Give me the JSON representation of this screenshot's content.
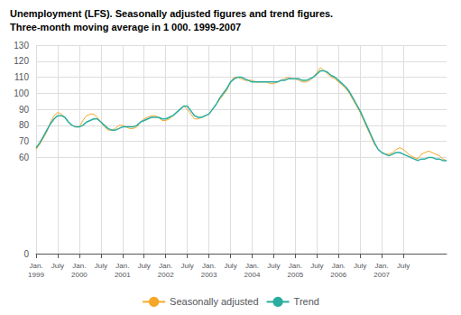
{
  "chart_data": {
    "type": "line",
    "title": "Unemployment (LFS). Seasonally adjusted figures and trend figures.",
    "subtitle": "Three-month moving average in 1 000. 1999-2007",
    "categories": [
      "Jan.\n1999",
      null,
      null,
      null,
      null,
      null,
      "July",
      null,
      null,
      null,
      null,
      null,
      "Jan.\n2000",
      null,
      null,
      null,
      null,
      null,
      "July",
      null,
      null,
      null,
      null,
      null,
      "Jan.\n2001",
      null,
      null,
      null,
      null,
      null,
      "July",
      null,
      null,
      null,
      null,
      null,
      "Jan.\n2002",
      null,
      null,
      null,
      null,
      null,
      "July",
      null,
      null,
      null,
      null,
      null,
      "Jan.\n2003",
      null,
      null,
      null,
      null,
      null,
      "July",
      null,
      null,
      null,
      null,
      null,
      "Jan.\n2004",
      null,
      null,
      null,
      null,
      null,
      "July",
      null,
      null,
      null,
      null,
      null,
      "Jan.\n2005",
      null,
      null,
      null,
      null,
      null,
      "July",
      null,
      null,
      null,
      null,
      null,
      "Jan.\n2006",
      null,
      null,
      null,
      null,
      null,
      "July",
      null,
      null,
      null,
      null,
      null,
      "Jan.\n2007",
      null,
      null,
      null,
      null,
      null,
      "July",
      null,
      null,
      null,
      null,
      null,
      null,
      null,
      null,
      null,
      null,
      null,
      null
    ],
    "series": [
      {
        "name": "Seasonally adjusted",
        "color": "#f5a828",
        "values": [
          65,
          68,
          72,
          76,
          82,
          86,
          88,
          87,
          85,
          82,
          80,
          79,
          79,
          83,
          86,
          87,
          87,
          85,
          82,
          79,
          77,
          77,
          78,
          80,
          80,
          79,
          78,
          78,
          79,
          82,
          84,
          85,
          86,
          86,
          85,
          83,
          83,
          84,
          86,
          88,
          90,
          92,
          90,
          87,
          84,
          84,
          85,
          86,
          87,
          90,
          93,
          96,
          99,
          102,
          107,
          110,
          110,
          109,
          108,
          108,
          108,
          107,
          107,
          107,
          107,
          106,
          106,
          107,
          108,
          109,
          110,
          109,
          109,
          108,
          107,
          107,
          108,
          110,
          113,
          116,
          114,
          112,
          110,
          109,
          107,
          105,
          103,
          100,
          96,
          92,
          88,
          83,
          78,
          73,
          68,
          65,
          63,
          62,
          62,
          63,
          65,
          66,
          65,
          63,
          61,
          60,
          59,
          62,
          63,
          64,
          63,
          62,
          61,
          59,
          58
        ]
      },
      {
        "name": "Trend",
        "color": "#2aada0",
        "values": [
          66,
          69,
          73,
          77,
          81,
          84,
          86,
          86,
          85,
          82,
          80,
          79,
          79,
          80,
          82,
          83,
          84,
          84,
          82,
          80,
          78,
          77,
          77,
          78,
          79,
          79,
          79,
          79,
          80,
          82,
          83,
          84,
          85,
          85,
          85,
          84,
          84,
          85,
          86,
          88,
          90,
          92,
          92,
          89,
          86,
          85,
          85,
          86,
          87,
          90,
          93,
          97,
          100,
          103,
          107,
          109,
          110,
          110,
          109,
          108,
          107,
          107,
          107,
          107,
          107,
          107,
          107,
          107,
          108,
          108,
          109,
          109,
          109,
          109,
          108,
          108,
          109,
          110,
          112,
          114,
          114,
          113,
          111,
          110,
          108,
          106,
          104,
          101,
          97,
          93,
          89,
          84,
          79,
          74,
          69,
          65,
          63,
          62,
          61,
          62,
          63,
          63,
          62,
          61,
          60,
          59,
          58,
          59,
          59,
          60,
          60,
          59,
          59,
          58,
          58
        ]
      }
    ],
    "ylim": [
      0,
      130
    ],
    "yticks": [
      0,
      60,
      70,
      80,
      90,
      100,
      110,
      120,
      130
    ],
    "grid": true,
    "legend": "bottom"
  }
}
